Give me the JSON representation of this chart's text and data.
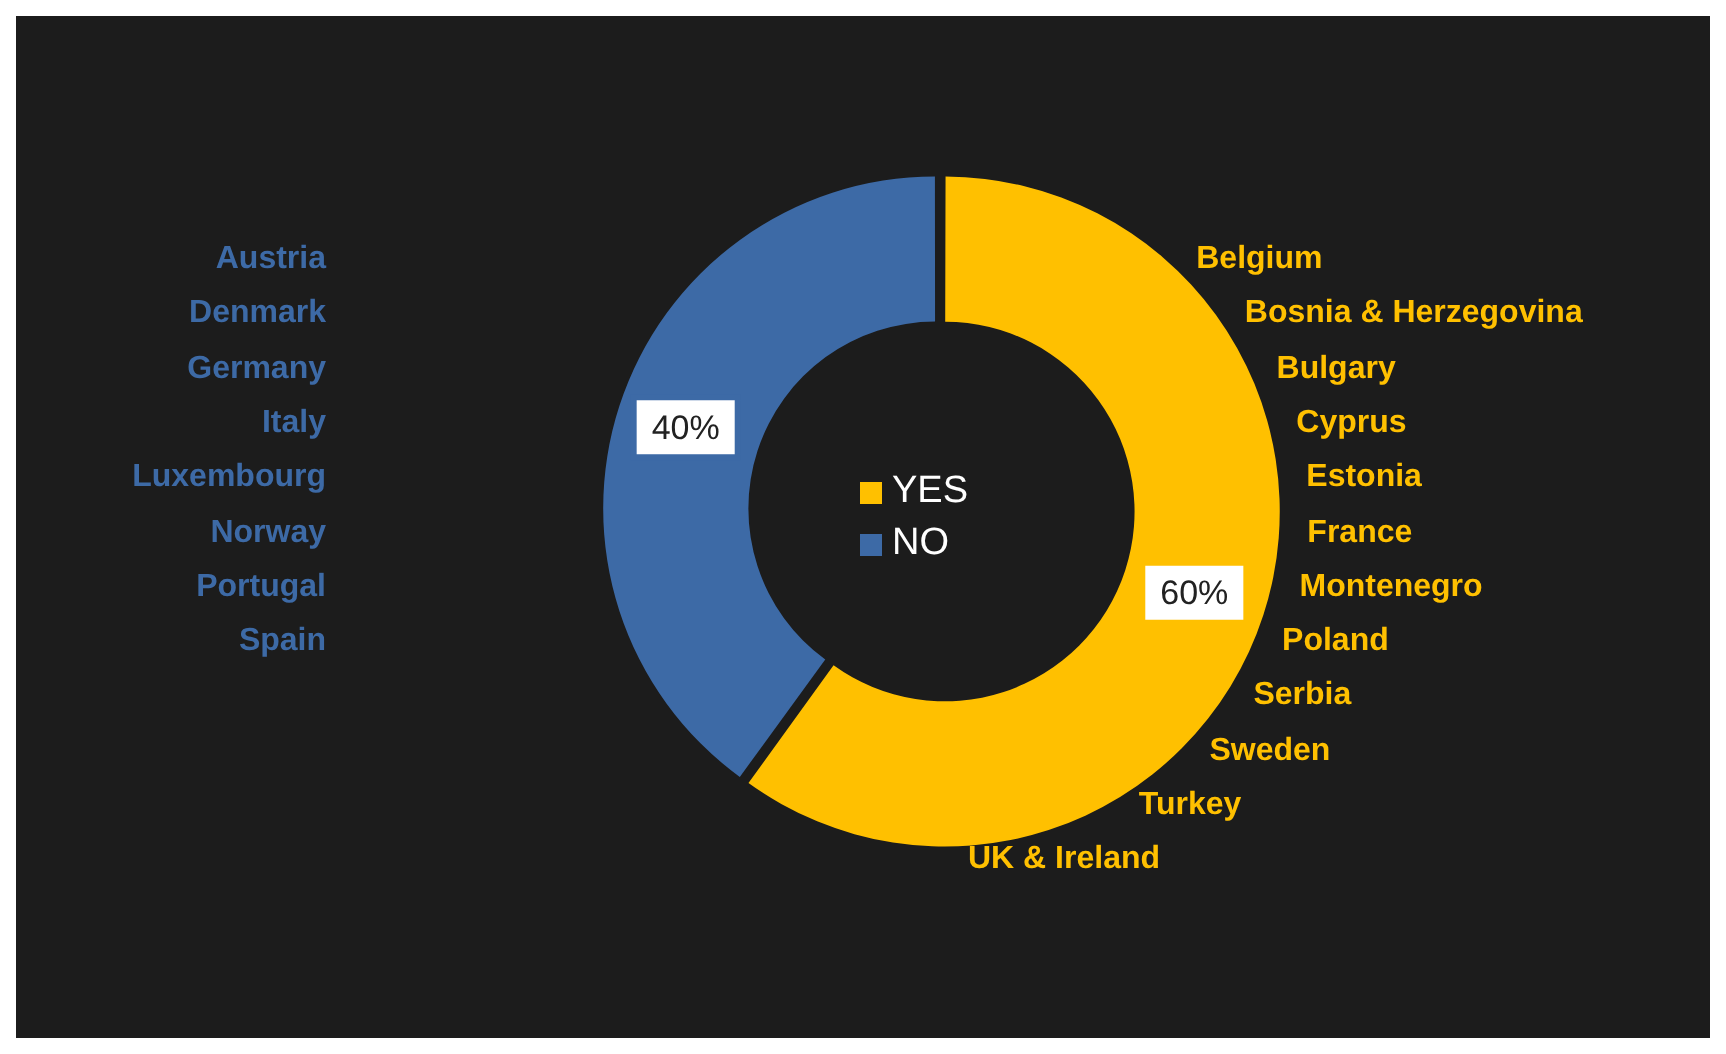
{
  "chart_data": {
    "type": "donut",
    "categories": [
      "YES",
      "NO"
    ],
    "values": [
      60,
      40
    ],
    "colors": [
      "#ffc000",
      "#3d6aa6"
    ],
    "value_labels": [
      "60%",
      "40%"
    ],
    "legend": "center",
    "annotations": [
      "Belgium\nBosnia & Herzegovina\nBulgary\nCyprus\nEstonia\nFrance\nMontenegro\nPoland\nSerbia\nSweden\nTurkey\nUK & Ireland",
      "Austria\nDenmark\nGermany\nItaly\nLuxembourg\nNorway\nPortugal\nSpain"
    ]
  }
}
